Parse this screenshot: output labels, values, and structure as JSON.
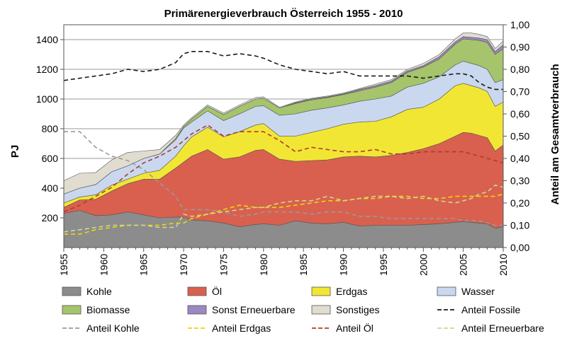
{
  "chart_data": {
    "type": "area",
    "title": "Primärenergieverbrauch Österreich 1955 - 2010",
    "ylabel": "PJ",
    "y2label": "Anteil am Gesamtverbrauch",
    "ylim": [
      0,
      1500
    ],
    "y2lim": [
      0,
      1.0
    ],
    "yticks": [
      "200",
      "400",
      "600",
      "800",
      "1000",
      "1200",
      "1400"
    ],
    "y2ticks": [
      "0,00",
      "0,10",
      "0,20",
      "0,30",
      "0,40",
      "0,50",
      "0,60",
      "0,70",
      "0,80",
      "0,90",
      "1,00"
    ],
    "xticks": [
      "1955",
      "1960",
      "1965",
      "1970",
      "1975",
      "1980",
      "1985",
      "1990",
      "1995",
      "2000",
      "2005",
      "2010"
    ],
    "x": [
      1955,
      1957,
      1959,
      1961,
      1963,
      1965,
      1967,
      1969,
      1970,
      1971,
      1973,
      1975,
      1977,
      1979,
      1980,
      1982,
      1984,
      1986,
      1988,
      1990,
      1992,
      1994,
      1996,
      1998,
      2000,
      2002,
      2004,
      2005,
      2006,
      2007,
      2008,
      2009,
      2010
    ],
    "grid": true,
    "legend_position": "bottom",
    "stacked_series": [
      {
        "name": "Kohle",
        "color": "#8c8c8c",
        "values": [
          230,
          250,
          215,
          220,
          240,
          220,
          200,
          205,
          205,
          185,
          180,
          165,
          140,
          155,
          160,
          150,
          180,
          165,
          160,
          170,
          145,
          150,
          150,
          150,
          155,
          160,
          170,
          175,
          170,
          165,
          160,
          130,
          140
        ]
      },
      {
        "name": "Öl",
        "color": "#d9604e",
        "values": [
          40,
          70,
          110,
          160,
          190,
          240,
          260,
          330,
          370,
          430,
          480,
          430,
          470,
          500,
          500,
          445,
          400,
          420,
          430,
          440,
          470,
          460,
          470,
          490,
          510,
          540,
          580,
          600,
          600,
          590,
          580,
          520,
          550
        ]
      },
      {
        "name": "Erdgas",
        "color": "#f2e634",
        "values": [
          30,
          20,
          30,
          40,
          30,
          40,
          60,
          80,
          110,
          130,
          150,
          150,
          170,
          170,
          175,
          155,
          170,
          190,
          210,
          220,
          230,
          240,
          260,
          290,
          280,
          300,
          340,
          330,
          320,
          320,
          310,
          300,
          290
        ]
      },
      {
        "name": "Wasser",
        "color": "#c9d8ef",
        "values": [
          60,
          60,
          70,
          90,
          90,
          100,
          110,
          110,
          120,
          100,
          110,
          110,
          120,
          125,
          120,
          140,
          150,
          150,
          140,
          130,
          140,
          150,
          140,
          150,
          160,
          150,
          140,
          150,
          150,
          150,
          150,
          160,
          150
        ]
      },
      {
        "name": "Biomasse",
        "color": "#a5c46b",
        "values": [
          0,
          0,
          0,
          0,
          0,
          0,
          0,
          10,
          10,
          20,
          30,
          40,
          50,
          50,
          50,
          50,
          70,
          70,
          70,
          70,
          70,
          80,
          90,
          100,
          110,
          120,
          140,
          150,
          160,
          170,
          180,
          190,
          210
        ]
      },
      {
        "name": "Sonst Erneuerbare",
        "color": "#9b87c2",
        "values": [
          0,
          0,
          0,
          0,
          0,
          0,
          0,
          0,
          0,
          0,
          0,
          0,
          0,
          0,
          0,
          0,
          5,
          5,
          5,
          5,
          10,
          10,
          10,
          10,
          10,
          15,
          15,
          15,
          15,
          15,
          20,
          20,
          25
        ]
      },
      {
        "name": "Sonstiges",
        "color": "#e0ddd0",
        "values": [
          90,
          100,
          80,
          80,
          90,
          50,
          30,
          20,
          10,
          10,
          10,
          10,
          10,
          10,
          10,
          5,
          5,
          5,
          5,
          5,
          5,
          10,
          10,
          10,
          15,
          15,
          20,
          25,
          30,
          25,
          20,
          20,
          25
        ]
      }
    ],
    "share_series": [
      {
        "name": "Anteil Fossile",
        "color": "#1a1a1a",
        "values": [
          0.75,
          0.76,
          0.77,
          0.78,
          0.8,
          0.79,
          0.8,
          0.83,
          0.87,
          0.88,
          0.88,
          0.86,
          0.87,
          0.86,
          0.85,
          0.82,
          0.8,
          0.79,
          0.78,
          0.79,
          0.77,
          0.77,
          0.77,
          0.77,
          0.76,
          0.77,
          0.78,
          0.78,
          0.77,
          0.74,
          0.72,
          0.71,
          0.71
        ]
      },
      {
        "name": "Anteil Kohle",
        "color": "#999999",
        "values": [
          0.52,
          0.52,
          0.45,
          0.41,
          0.39,
          0.35,
          0.29,
          0.23,
          0.17,
          0.17,
          0.17,
          0.16,
          0.14,
          0.15,
          0.16,
          0.16,
          0.16,
          0.15,
          0.16,
          0.16,
          0.14,
          0.14,
          0.13,
          0.13,
          0.13,
          0.13,
          0.13,
          0.12,
          0.12,
          0.12,
          0.11,
          0.1,
          0.1
        ]
      },
      {
        "name": "Anteil Erdgas",
        "color": "#f2d600",
        "values": [
          0.06,
          0.06,
          0.08,
          0.09,
          0.1,
          0.1,
          0.1,
          0.11,
          0.11,
          0.13,
          0.15,
          0.17,
          0.19,
          0.18,
          0.18,
          0.18,
          0.19,
          0.2,
          0.21,
          0.21,
          0.22,
          0.22,
          0.23,
          0.23,
          0.22,
          0.22,
          0.23,
          0.23,
          0.23,
          0.23,
          0.23,
          0.23,
          0.24
        ]
      },
      {
        "name": "Anteil Öl",
        "color": "#b03a30",
        "values": [
          0.16,
          0.19,
          0.23,
          0.27,
          0.33,
          0.38,
          0.41,
          0.45,
          0.48,
          0.51,
          0.55,
          0.5,
          0.52,
          0.52,
          0.52,
          0.48,
          0.43,
          0.45,
          0.44,
          0.43,
          0.43,
          0.44,
          0.42,
          0.42,
          0.43,
          0.43,
          0.43,
          0.43,
          0.42,
          0.41,
          0.4,
          0.39,
          0.38
        ]
      },
      {
        "name": "Anteil Erneuerbare",
        "color": "#c8d89a",
        "values": [
          0.07,
          0.08,
          0.09,
          0.1,
          0.1,
          0.1,
          0.09,
          0.09,
          0.15,
          0.14,
          0.15,
          0.16,
          0.17,
          0.18,
          0.18,
          0.2,
          0.21,
          0.21,
          0.23,
          0.21,
          0.22,
          0.23,
          0.23,
          0.22,
          0.23,
          0.21,
          0.2,
          0.21,
          0.22,
          0.24,
          0.25,
          0.28,
          0.27
        ]
      }
    ]
  }
}
